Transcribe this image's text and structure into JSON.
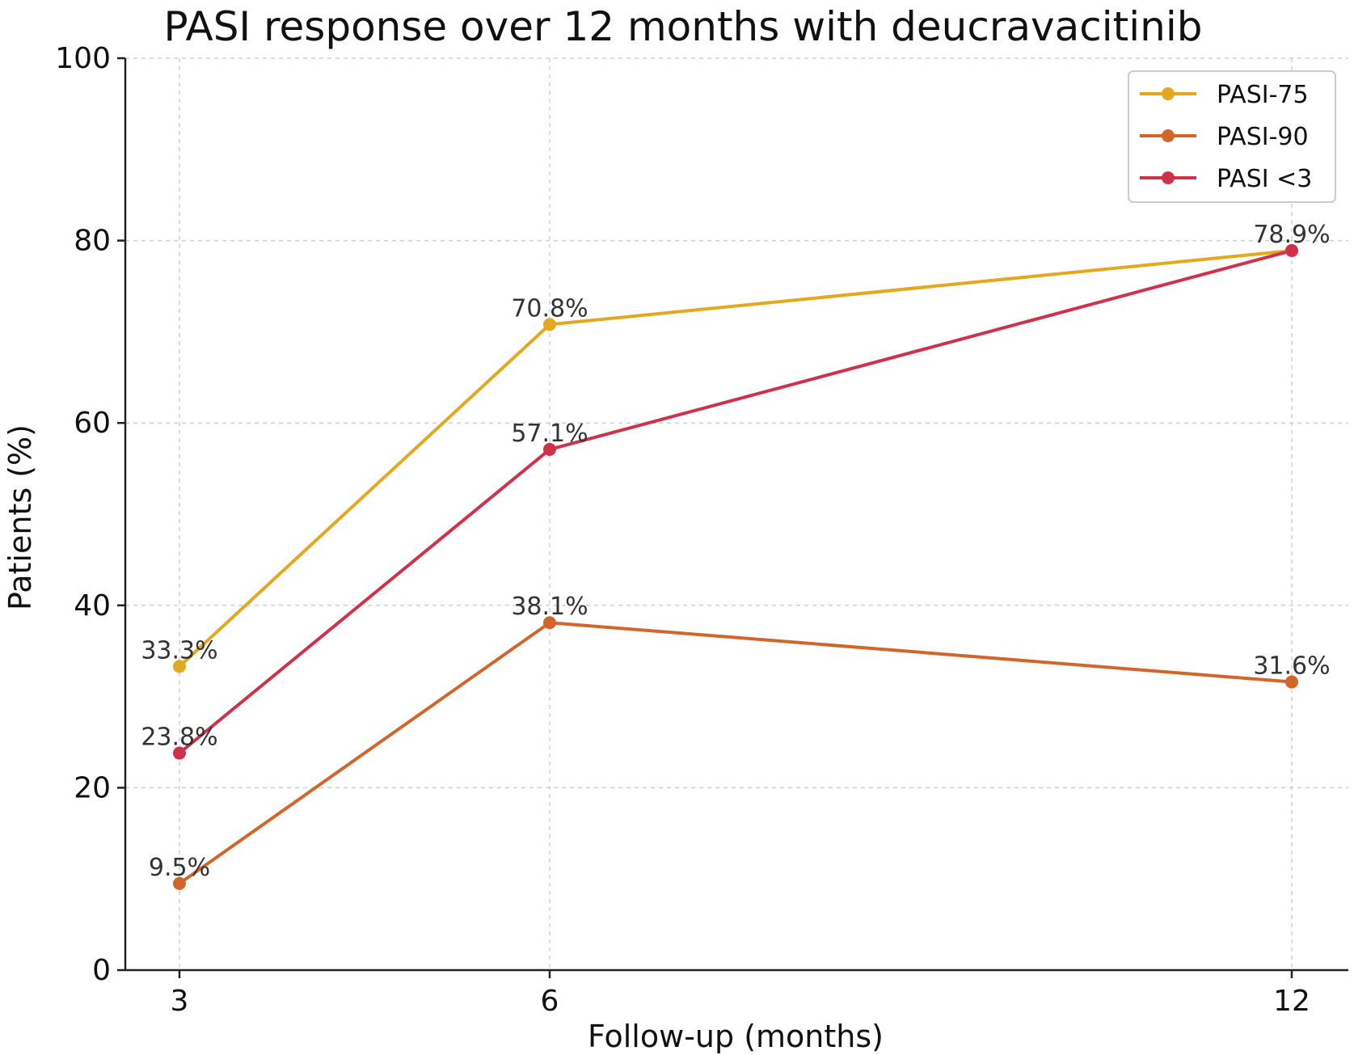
{
  "chart_data": {
    "type": "line",
    "title": "PASI response over 12 months with deucravacitinib",
    "xlabel": "Follow-up (months)",
    "ylabel": "Patients (%)",
    "x": [
      3,
      6,
      12
    ],
    "x_tick_labels": [
      "3",
      "6",
      "12"
    ],
    "ylim": [
      0,
      100
    ],
    "y_ticks": [
      0,
      20,
      40,
      60,
      80,
      100
    ],
    "y_tick_labels": [
      "0",
      "20",
      "40",
      "60",
      "80",
      "100"
    ],
    "grid": true,
    "legend_position": "top-right",
    "series": [
      {
        "name": "PASI-75",
        "color": "#E3A81E",
        "values": [
          33.3,
          70.8,
          78.9
        ],
        "data_labels": [
          "33.3%",
          "70.8%",
          ""
        ]
      },
      {
        "name": "PASI-90",
        "color": "#D2662A",
        "values": [
          9.5,
          38.1,
          31.6
        ],
        "data_labels": [
          "9.5%",
          "38.1%",
          "31.6%"
        ]
      },
      {
        "name": "PASI <3",
        "color": "#D0314A",
        "values": [
          23.8,
          57.1,
          78.9
        ],
        "data_labels": [
          "23.8%",
          "57.1%",
          "78.9%"
        ]
      }
    ]
  }
}
